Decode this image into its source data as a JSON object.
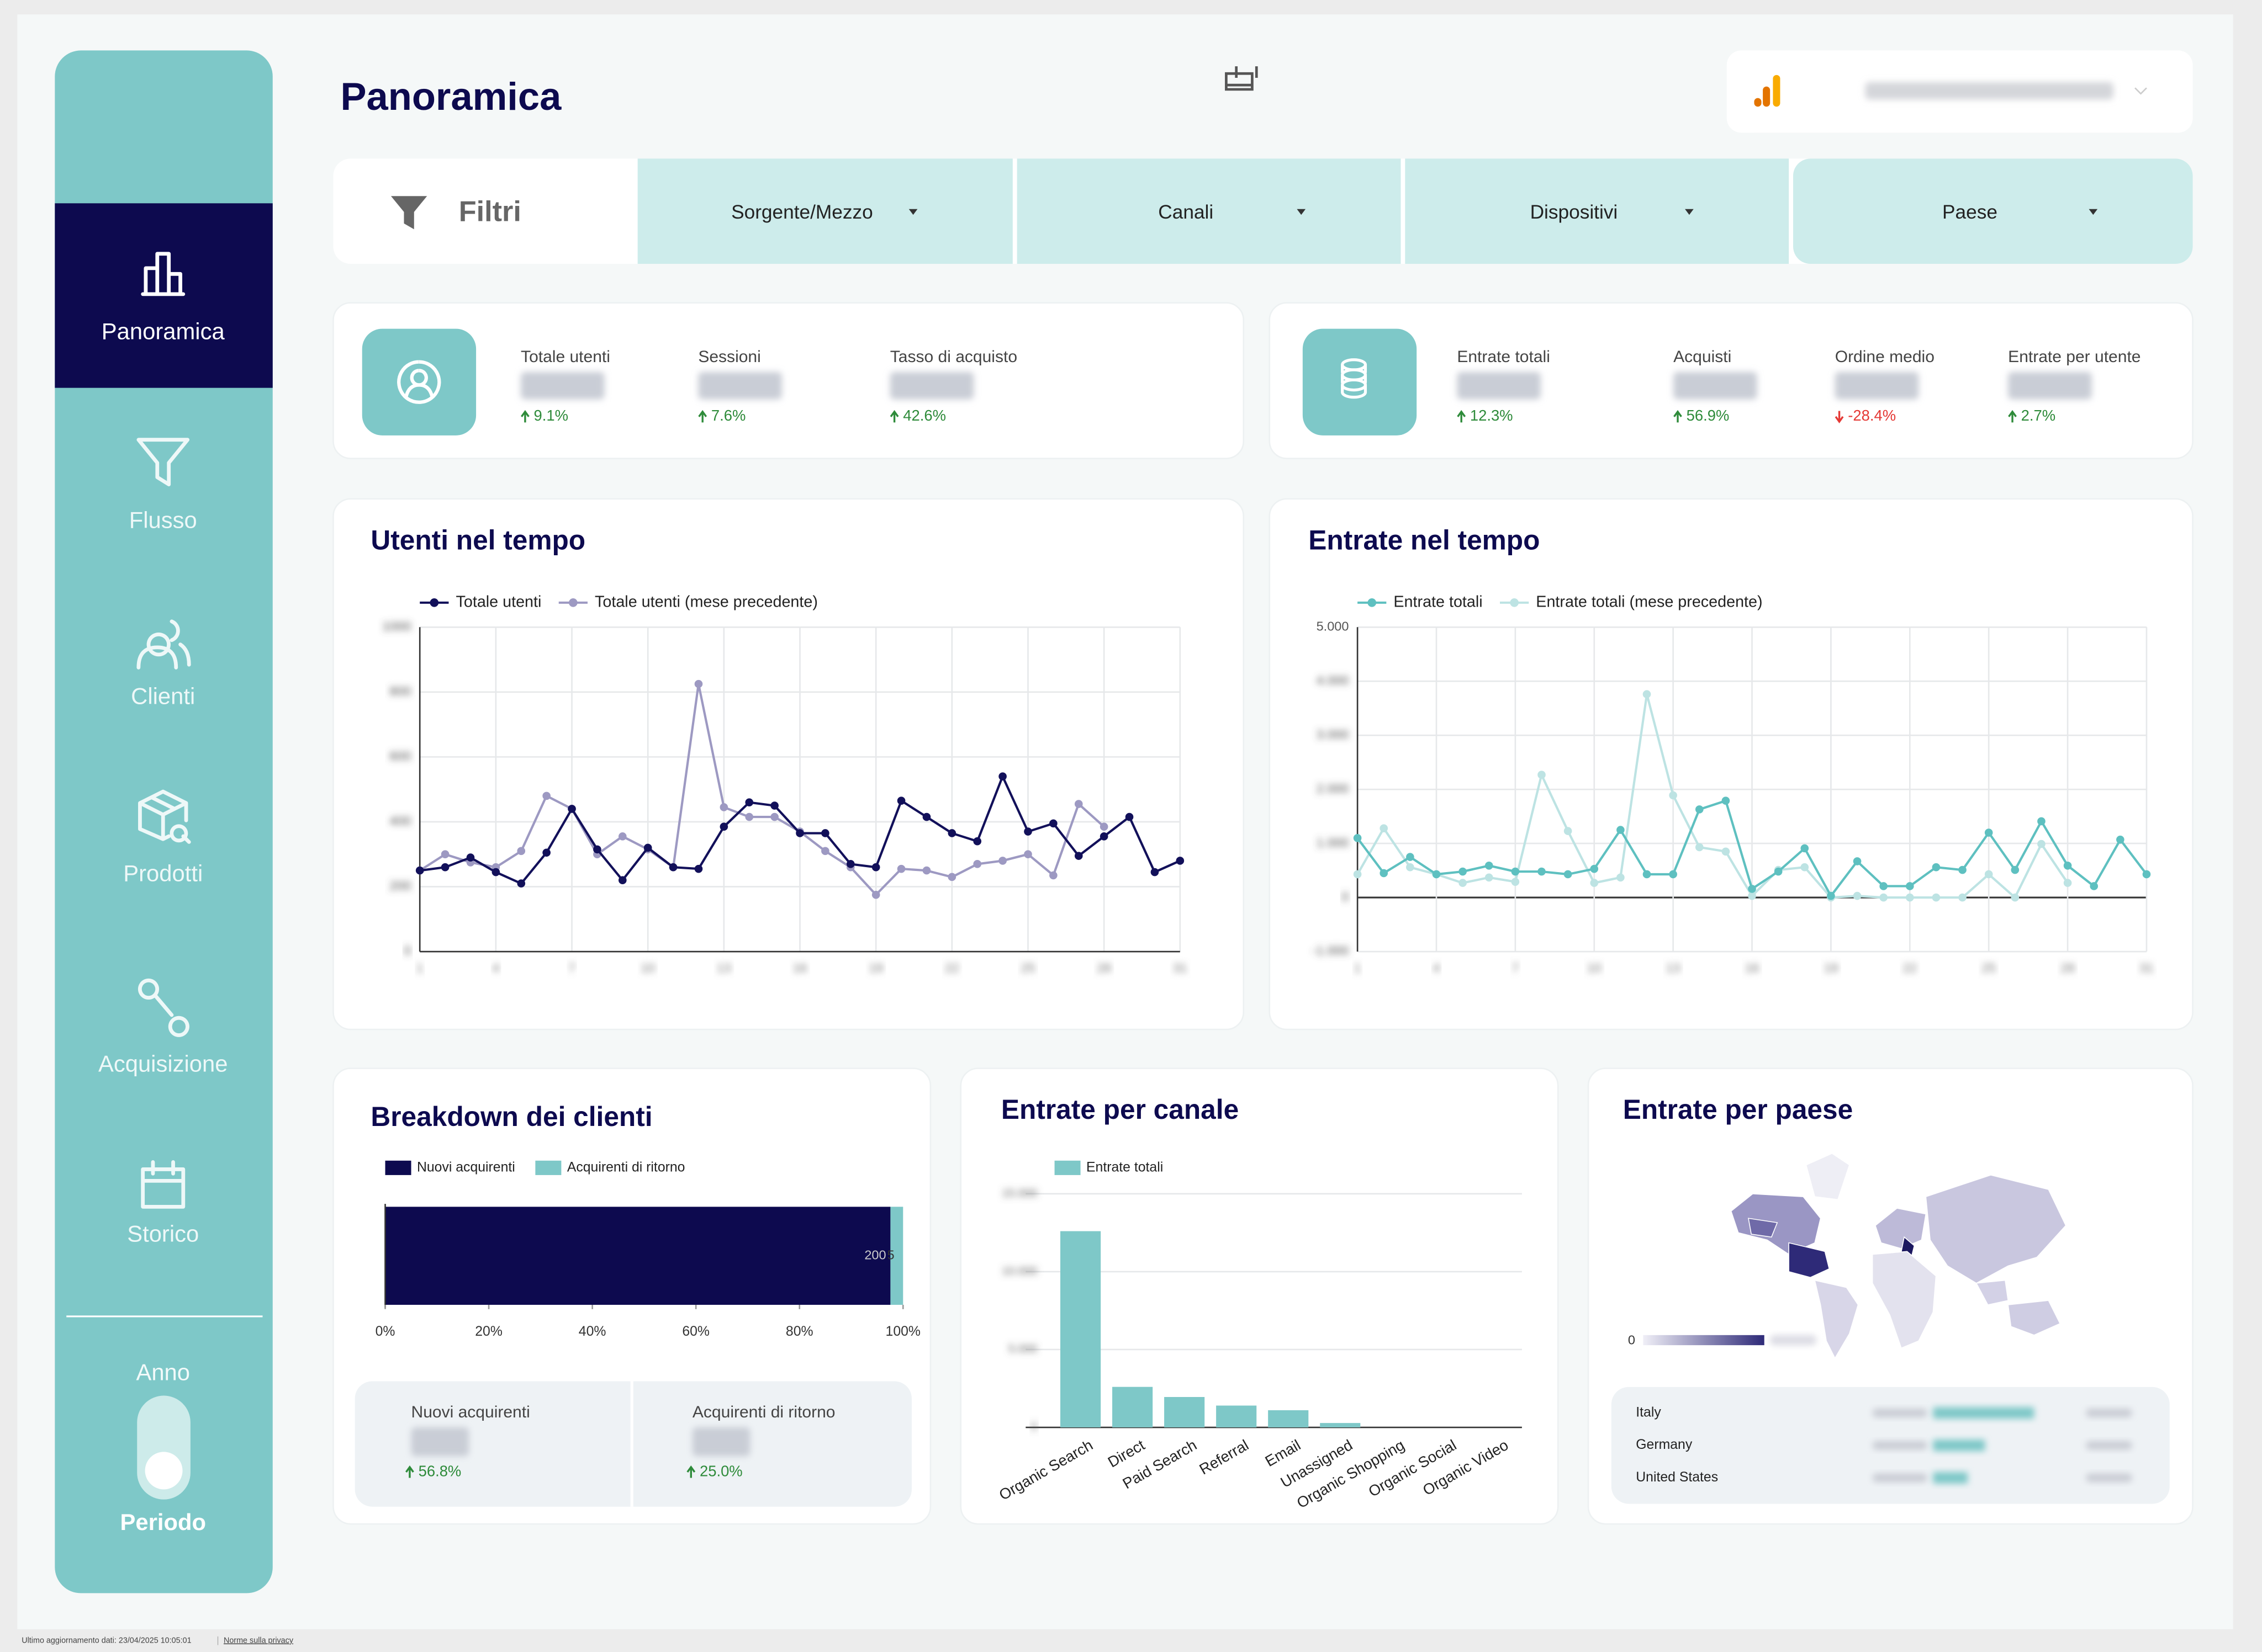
{
  "sidebar": {
    "items": [
      "Panoramica",
      "Flusso",
      "Clienti",
      "Prodotti",
      "Acquisizione",
      "Storico"
    ],
    "toggle_top": "Anno",
    "toggle_bottom": "Periodo"
  },
  "header": {
    "title": "Panoramica"
  },
  "filters": {
    "title": "Filtri",
    "items": [
      "Sorgente/Mezzo",
      "Canali",
      "Dispositivi",
      "Paese"
    ]
  },
  "kpis": [
    {
      "items": [
        {
          "label": "Totale utenti",
          "delta": "9.1%"
        },
        {
          "label": "Sessioni",
          "delta": "7.6%"
        },
        {
          "label": "Tasso di acquisto",
          "delta": "42.6%"
        }
      ]
    },
    {
      "items": [
        {
          "label": "Entrate totali",
          "delta": "12.3%"
        },
        {
          "label": "Acquisti",
          "delta": "56.9%"
        },
        {
          "label": "Ordine medio",
          "delta": "-28.4%"
        },
        {
          "label": "Entrate per utente",
          "delta": "2.7%"
        }
      ]
    }
  ],
  "chart_data": [
    {
      "type": "line",
      "title": "Utenti nel tempo",
      "x": [
        1,
        2,
        3,
        4,
        5,
        6,
        7,
        8,
        9,
        10,
        11,
        12,
        13,
        14,
        15,
        16,
        17,
        18,
        19,
        20,
        21,
        22,
        23,
        24,
        25,
        26,
        27,
        28,
        29,
        30,
        31
      ],
      "xlim": [
        1,
        31
      ],
      "xticks": [
        1,
        4,
        7,
        10,
        13,
        16,
        19,
        22,
        25,
        28,
        31
      ],
      "ylim": [
        0,
        1000
      ],
      "yticks": [
        0,
        200,
        400,
        600,
        800,
        1000
      ],
      "grid": true,
      "series": [
        {
          "name": "Totale utenti",
          "color": "#12105a",
          "values": [
            250,
            260,
            290,
            245,
            210,
            305,
            440,
            315,
            220,
            320,
            260,
            255,
            385,
            460,
            450,
            365,
            365,
            270,
            260,
            465,
            415,
            365,
            340,
            540,
            370,
            395,
            295,
            355,
            415,
            245,
            280
          ]
        },
        {
          "name": "Totale utenti (mese precedente)",
          "color": "#9d99c2",
          "values": [
            250,
            300,
            275,
            260,
            310,
            480,
            440,
            300,
            355,
            315,
            260,
            825,
            445,
            415,
            415,
            370,
            310,
            260,
            175,
            255,
            250,
            230,
            270,
            280,
            300,
            235,
            455,
            385,
            null,
            null,
            null
          ]
        }
      ]
    },
    {
      "type": "line",
      "title": "Entrate nel tempo",
      "x": [
        1,
        2,
        3,
        4,
        5,
        6,
        7,
        8,
        9,
        10,
        11,
        12,
        13,
        14,
        15,
        16,
        17,
        18,
        19,
        20,
        21,
        22,
        23,
        24,
        25,
        26,
        27,
        28,
        29,
        30,
        31
      ],
      "xlim": [
        1,
        31
      ],
      "xticks": [
        1,
        4,
        7,
        10,
        13,
        16,
        19,
        22,
        25,
        28,
        31
      ],
      "ylim": [
        -1000,
        5000
      ],
      "yticks": [
        {
          "value": -1000,
          "label": "-1.000"
        },
        0,
        {
          "value": 1000,
          "label": "1.000"
        },
        {
          "value": 2000,
          "label": "2.000"
        },
        {
          "value": 3000,
          "label": "3.000"
        },
        {
          "value": 4000,
          "label": "4.000"
        },
        {
          "value": 5000,
          "label": "5.000"
        }
      ],
      "grid": true,
      "series": [
        {
          "name": "Entrate totali",
          "color": "#5ec0c0",
          "values": [
            1100,
            450,
            750,
            430,
            480,
            590,
            480,
            480,
            430,
            530,
            1250,
            430,
            430,
            1630,
            1790,
            160,
            480,
            910,
            30,
            670,
            210,
            210,
            560,
            510,
            1200,
            510,
            1410,
            590,
            210,
            1070,
            430
          ]
        },
        {
          "name": "Entrate totali (mese precedente)",
          "color": "#bde3e3",
          "values": [
            430,
            1280,
            560,
            430,
            270,
            370,
            290,
            2270,
            1230,
            270,
            370,
            3760,
            1890,
            930,
            850,
            30,
            510,
            560,
            0,
            30,
            0,
            0,
            0,
            0,
            430,
            0,
            990,
            270,
            null,
            null,
            null
          ]
        }
      ]
    },
    {
      "type": "hbar",
      "title": "Breakdown dei clienti",
      "stack": "percent",
      "xlim": [
        0,
        100
      ],
      "xticks": [
        {
          "value": 0,
          "label": "0%"
        },
        {
          "value": 20,
          "label": "20%"
        },
        {
          "value": 40,
          "label": "40%"
        },
        {
          "value": 60,
          "label": "60%"
        },
        {
          "value": 80,
          "label": "80%"
        },
        {
          "value": 100,
          "label": "100%"
        }
      ],
      "series": [
        {
          "name": "Nuovi acquirenti",
          "color": "#0d0a4f",
          "values": [
            200
          ]
        },
        {
          "name": "Acquirenti di ritorno",
          "color": "#7ec8c8",
          "values": [
            5
          ]
        }
      ],
      "summary": [
        {
          "label": "Nuovi acquirenti",
          "delta": "56.8%"
        },
        {
          "label": "Acquirenti di ritorno",
          "delta": "25.0%"
        }
      ]
    },
    {
      "type": "bar",
      "title": "Entrate per canale",
      "categories": [
        "Organic Search",
        "Direct",
        "Paid Search",
        "Referral",
        "Email",
        "Unassigned",
        "Organic Shopping",
        "Organic Social",
        "Organic Video"
      ],
      "ylim": [
        0,
        15000
      ],
      "yticks": [
        0,
        {
          "value": 5000,
          "label": "5.000"
        },
        {
          "value": 10000,
          "label": "10.000"
        },
        {
          "value": 15000,
          "label": "15.000"
        }
      ],
      "grid": true,
      "series": [
        {
          "name": "Entrate totali",
          "color": "#7ec8c8",
          "values": [
            12600,
            2600,
            1950,
            1400,
            1100,
            280,
            0,
            0,
            0
          ]
        }
      ]
    },
    {
      "type": "map",
      "title": "Entrate per paese",
      "legend_min": 0,
      "color": "#2e2a78",
      "rows": [
        "Italy",
        "Germany",
        "United States"
      ]
    }
  ],
  "footer": {
    "updated": "Ultimo aggiornamento dati: 23/04/2025 10:05:01",
    "privacy": "Norme sulla privacy"
  }
}
